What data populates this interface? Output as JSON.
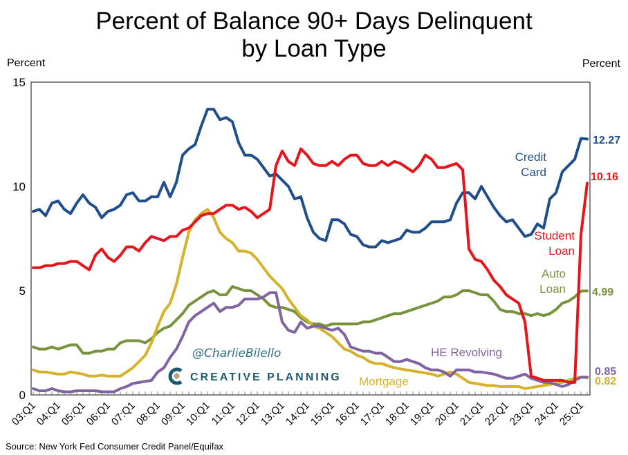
{
  "chart_data": {
    "type": "line",
    "title": "Percent of Balance 90+ Days Delinquent by Loan Type",
    "title_lines": [
      "Percent of Balance 90+ Days Delinquent",
      "by Loan Type"
    ],
    "ylabel_left": "Percent",
    "ylabel_right": "Percent",
    "ylim": [
      0,
      15
    ],
    "yticks": [
      "0",
      "5",
      "10",
      "15"
    ],
    "x_start": "03:Q1",
    "x_end": "25:Q2",
    "xtick_labels": [
      "03:Q1",
      "04:Q1",
      "05:Q1",
      "06:Q1",
      "07:Q1",
      "08:Q1",
      "09:Q1",
      "10:Q1",
      "11:Q1",
      "12:Q1",
      "13:Q1",
      "14:Q1",
      "15:Q1",
      "16:Q1",
      "17:Q1",
      "18:Q1",
      "19:Q1",
      "20:Q1",
      "21:Q1",
      "22:Q1",
      "23:Q1",
      "24:Q1",
      "25:Q1"
    ],
    "grid": false,
    "legend": "inline labels near line ends",
    "series": [
      {
        "name": "Credit Card",
        "color": "#1f4e8c",
        "end_label": "12.27",
        "values": [
          8.8,
          8.9,
          8.6,
          9.2,
          9.3,
          8.9,
          8.7,
          9.2,
          9.6,
          9.2,
          9.0,
          8.5,
          8.8,
          8.9,
          9.1,
          9.6,
          9.7,
          9.3,
          9.3,
          9.5,
          9.5,
          10.2,
          9.5,
          10.2,
          11.5,
          11.8,
          12.0,
          12.9,
          13.7,
          13.7,
          13.2,
          13.3,
          13.1,
          12.1,
          11.5,
          11.5,
          11.3,
          10.9,
          10.5,
          10.6,
          10.3,
          10.0,
          9.4,
          9.5,
          8.5,
          7.8,
          7.5,
          7.4,
          8.4,
          8.4,
          8.2,
          7.7,
          7.6,
          7.2,
          7.1,
          7.1,
          7.4,
          7.3,
          7.4,
          7.5,
          7.9,
          7.8,
          7.8,
          8.0,
          8.3,
          8.3,
          8.3,
          8.4,
          9.2,
          9.7,
          9.7,
          9.4,
          10.0,
          9.5,
          9.0,
          8.6,
          8.3,
          8.4,
          8.0,
          7.6,
          7.7,
          8.2,
          8.0,
          9.4,
          9.7,
          10.7,
          11.0,
          11.3,
          12.3,
          12.27
        ]
      },
      {
        "name": "Student Loan",
        "color": "#e8141b",
        "end_label": "10.16",
        "values": [
          6.1,
          6.1,
          6.2,
          6.2,
          6.3,
          6.3,
          6.4,
          6.4,
          6.2,
          6.0,
          6.7,
          7.0,
          6.6,
          6.4,
          6.7,
          7.1,
          7.1,
          6.9,
          7.3,
          7.6,
          7.5,
          7.4,
          7.6,
          7.6,
          7.9,
          8.0,
          8.3,
          8.6,
          8.7,
          8.7,
          8.9,
          9.1,
          9.1,
          8.9,
          9.0,
          8.8,
          8.5,
          8.7,
          8.9,
          11.0,
          11.7,
          11.2,
          11.0,
          11.8,
          11.5,
          11.1,
          11.0,
          11.0,
          11.2,
          11.0,
          11.3,
          11.5,
          11.5,
          11.1,
          11.0,
          11.0,
          11.2,
          11.0,
          11.2,
          11.1,
          10.9,
          10.7,
          11.0,
          11.5,
          11.3,
          10.9,
          10.9,
          11.0,
          11.1,
          10.8,
          7.0,
          6.5,
          6.4,
          6.0,
          5.5,
          5.2,
          4.8,
          4.6,
          4.4,
          3.5,
          0.9,
          0.8,
          0.7,
          0.7,
          0.7,
          0.7,
          0.6,
          0.6,
          7.7,
          10.16
        ]
      },
      {
        "name": "Auto Loan",
        "color": "#77933c",
        "end_label": "4.99",
        "values": [
          2.3,
          2.2,
          2.2,
          2.3,
          2.2,
          2.3,
          2.4,
          2.4,
          2.0,
          2.0,
          2.1,
          2.1,
          2.2,
          2.2,
          2.5,
          2.6,
          2.6,
          2.6,
          2.5,
          2.7,
          3.0,
          3.2,
          3.3,
          3.6,
          3.9,
          4.3,
          4.5,
          4.7,
          4.9,
          5.0,
          4.8,
          4.8,
          5.2,
          5.1,
          5.0,
          5.0,
          4.8,
          4.6,
          4.3,
          4.2,
          4.2,
          4.1,
          4.0,
          3.7,
          3.5,
          3.4,
          3.4,
          3.3,
          3.4,
          3.4,
          3.4,
          3.4,
          3.4,
          3.5,
          3.5,
          3.6,
          3.7,
          3.8,
          3.9,
          3.9,
          4.0,
          4.1,
          4.2,
          4.3,
          4.4,
          4.5,
          4.7,
          4.7,
          4.8,
          5.0,
          5.0,
          4.9,
          4.8,
          4.8,
          4.5,
          4.1,
          4.0,
          4.0,
          3.9,
          3.9,
          3.8,
          3.9,
          3.8,
          3.9,
          4.1,
          4.4,
          4.5,
          4.7,
          4.98,
          4.99
        ]
      },
      {
        "name": "HE Revolving",
        "color": "#8064a2",
        "end_label": "0.85",
        "values": [
          0.3,
          0.2,
          0.2,
          0.3,
          0.2,
          0.15,
          0.15,
          0.2,
          0.2,
          0.2,
          0.2,
          0.15,
          0.15,
          0.15,
          0.3,
          0.4,
          0.55,
          0.6,
          0.65,
          0.7,
          1.1,
          1.3,
          1.8,
          2.2,
          2.8,
          3.5,
          3.8,
          4.0,
          4.2,
          4.4,
          4.0,
          4.2,
          4.2,
          4.3,
          4.6,
          4.6,
          4.6,
          4.7,
          4.9,
          4.9,
          3.5,
          3.1,
          3.0,
          3.5,
          3.2,
          3.3,
          3.3,
          3.2,
          3.1,
          3.2,
          2.9,
          2.3,
          2.2,
          2.1,
          2.1,
          2.0,
          2.0,
          1.8,
          1.6,
          1.6,
          1.7,
          1.6,
          1.5,
          1.3,
          1.2,
          1.2,
          1.1,
          0.9,
          1.2,
          1.2,
          1.2,
          1.1,
          1.1,
          1.05,
          1.0,
          0.9,
          0.8,
          0.8,
          0.9,
          1.0,
          0.8,
          0.7,
          0.6,
          0.6,
          0.5,
          0.4,
          0.5,
          0.7,
          0.85,
          0.85
        ]
      },
      {
        "name": "Mortgage",
        "color": "#d6b22a",
        "end_label": "0.82",
        "values": [
          1.2,
          1.1,
          1.1,
          1.05,
          1.0,
          1.0,
          1.1,
          1.05,
          1.0,
          0.9,
          0.9,
          0.95,
          0.9,
          0.9,
          0.9,
          1.1,
          1.3,
          1.6,
          1.9,
          2.5,
          3.3,
          4.0,
          4.4,
          5.3,
          6.6,
          7.8,
          8.4,
          8.7,
          8.9,
          8.5,
          7.8,
          7.5,
          7.3,
          6.9,
          6.9,
          6.8,
          6.5,
          6.1,
          5.7,
          5.4,
          5.1,
          4.6,
          4.2,
          3.8,
          3.6,
          3.3,
          3.2,
          3.0,
          2.8,
          2.5,
          2.2,
          2.1,
          1.9,
          1.8,
          1.6,
          1.5,
          1.5,
          1.4,
          1.3,
          1.25,
          1.2,
          1.15,
          1.1,
          1.05,
          1.0,
          0.9,
          1.0,
          1.1,
          1.0,
          0.8,
          0.6,
          0.55,
          0.5,
          0.45,
          0.45,
          0.4,
          0.4,
          0.4,
          0.4,
          0.3,
          0.35,
          0.4,
          0.45,
          0.5,
          0.55,
          0.6,
          0.7,
          0.8,
          0.85,
          0.82
        ]
      }
    ],
    "series_labels": {
      "credit_card": [
        "Credit",
        "Card"
      ],
      "student_loan": [
        "Student",
        "Loan"
      ],
      "auto_loan": [
        "Auto",
        "Loan"
      ],
      "he_revolving": "HE Revolving",
      "mortgage": "Mortgage"
    },
    "source": "Source: New York Fed Consumer Credit Panel/Equifax"
  },
  "watermark": {
    "handle": "@CharlieBilello",
    "brand": "CREATIVE PLANNING",
    "brand_color": "#1d5a70",
    "logo_accent": "#b9a27a"
  }
}
